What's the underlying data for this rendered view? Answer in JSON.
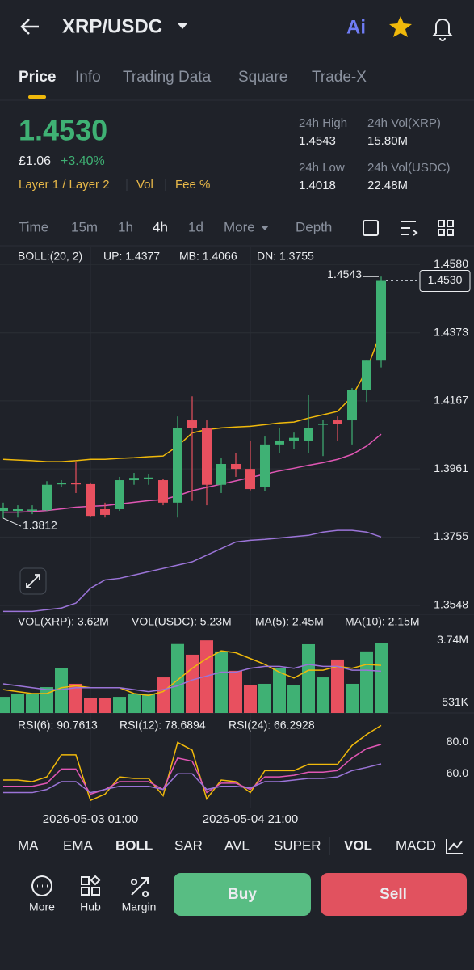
{
  "header": {
    "title": "XRP/USDC",
    "ai_label": "Ai"
  },
  "tabs": [
    "Price",
    "Info",
    "Trading Data",
    "Square",
    "Trade-X"
  ],
  "ticker": {
    "price": "1.4530",
    "fiat": "£1.06",
    "change": "+3.40%",
    "tags": [
      "Layer 1 / Layer 2",
      "Vol",
      "Fee %"
    ],
    "stats": [
      {
        "label": "24h High",
        "value": "1.4543"
      },
      {
        "label": "24h Vol(XRP)",
        "value": "15.80M"
      },
      {
        "label": "24h Low",
        "value": "1.4018"
      },
      {
        "label": "24h Vol(USDC)",
        "value": "22.48M"
      }
    ]
  },
  "intervals": [
    "Time",
    "15m",
    "1h",
    "4h",
    "1d",
    "More",
    "Depth"
  ],
  "chart_data": [
    {
      "type": "candlestick",
      "up_color": "#3fb174",
      "down_color": "#e8505f",
      "categories": [
        null,
        null,
        null,
        null,
        null,
        null,
        "2026-05-03 01:00",
        null,
        null,
        null,
        null,
        null,
        null,
        null,
        null,
        null,
        null,
        "2026-05-04 21:00",
        null,
        null,
        null,
        null,
        null,
        null,
        null,
        null,
        null
      ],
      "open": [
        1.3834,
        1.3834,
        1.3836,
        1.3836,
        1.3917,
        1.3918,
        1.3915,
        1.3839,
        1.3839,
        1.3927,
        1.3934,
        1.3927,
        1.3859,
        1.4108,
        1.4084,
        1.3913,
        1.3976,
        1.3961,
        1.3905,
        1.4035,
        1.4047,
        1.4047,
        1.4096,
        1.4108,
        1.4108,
        1.4201,
        1.4291
      ],
      "high": [
        1.3859,
        1.3851,
        1.3851,
        1.3924,
        1.3927,
        1.3983,
        1.392,
        1.3859,
        1.3937,
        1.3949,
        1.3944,
        1.3932,
        1.412,
        1.4181,
        1.4108,
        1.3993,
        1.401,
        1.4047,
        1.4059,
        1.4084,
        1.4071,
        1.4184,
        1.411,
        1.412,
        1.4206,
        1.4291,
        1.4543
      ],
      "low": [
        1.3812,
        1.3814,
        1.3824,
        1.3834,
        1.3905,
        1.3888,
        1.3815,
        1.3814,
        1.3834,
        1.3913,
        1.3913,
        1.3851,
        1.3814,
        1.3864,
        1.3851,
        1.3888,
        1.3937,
        1.3896,
        1.3895,
        1.401,
        1.4022,
        1.401,
        1.4,
        1.4047,
        1.4035,
        1.4164,
        1.4268
      ],
      "close": [
        1.3844,
        1.3839,
        1.3838,
        1.3913,
        1.3918,
        1.3917,
        1.3819,
        1.3822,
        1.3927,
        1.3934,
        1.3935,
        1.3859,
        1.4084,
        1.4084,
        1.3913,
        1.3976,
        1.3961,
        1.39,
        1.4035,
        1.4047,
        1.4055,
        1.4084,
        1.4098,
        1.4096,
        1.4201,
        1.4291,
        1.453
      ],
      "legend_title": "BOLL:(20, 2)",
      "series": [
        {
          "label": "UP: 1.4377",
          "color": "#f0b90b",
          "values": [
            1.399,
            1.3988,
            1.3986,
            1.3983,
            1.3983,
            1.3986,
            1.399,
            1.399,
            1.3993,
            1.3995,
            1.3998,
            1.4,
            1.403,
            1.407,
            1.408,
            1.4085,
            1.4088,
            1.409,
            1.4095,
            1.41,
            1.4103,
            1.4115,
            1.4125,
            1.4135,
            1.418,
            1.426,
            1.4377
          ]
        },
        {
          "label": "MB: 1.4066",
          "color": "#e056b4",
          "values": [
            1.383,
            1.383,
            1.3832,
            1.3835,
            1.384,
            1.3845,
            1.3848,
            1.385,
            1.3855,
            1.386,
            1.3865,
            1.3868,
            1.388,
            1.3895,
            1.3905,
            1.3915,
            1.3925,
            1.3935,
            1.3945,
            1.3955,
            1.3963,
            1.3972,
            1.398,
            1.399,
            1.4005,
            1.403,
            1.4066
          ]
        },
        {
          "label": "DN: 1.3755",
          "color": "#9b74d8",
          "values": [
            1.353,
            1.353,
            1.353,
            1.3535,
            1.354,
            1.3555,
            1.36,
            1.3625,
            1.363,
            1.364,
            1.365,
            1.366,
            1.367,
            1.368,
            1.37,
            1.372,
            1.374,
            1.3745,
            1.3748,
            1.3752,
            1.3756,
            1.376,
            1.377,
            1.3775,
            1.3775,
            1.377,
            1.3755
          ]
        }
      ],
      "ylim": [
        1.3521,
        1.4634
      ],
      "yticks": [
        {
          "value": 1.458,
          "label": "1.4580"
        },
        1.4373,
        1.4167,
        1.3961,
        1.3755,
        1.3548
      ],
      "grid": true,
      "annotations": {
        "high": "1.4543",
        "low": "1.3812",
        "last": "1.4530"
      }
    },
    {
      "type": "bar",
      "legend": [
        "VOL(XRP): 3.62M",
        "VOL(USDC): 5.23M"
      ],
      "values": [
        830000,
        1000000,
        1000000,
        1330000,
        2330000,
        1500000,
        750000,
        750000,
        830000,
        1000000,
        1000000,
        1830000,
        3550000,
        3000000,
        3740000,
        3170000,
        2170000,
        1420000,
        1500000,
        2330000,
        1420000,
        3540000,
        1830000,
        2750000,
        1500000,
        3170000,
        3620000
      ],
      "series": [
        {
          "label": "MA(5): 2.45M",
          "color": "#f0b90b",
          "values": [
            1200000,
            1100000,
            1000000,
            1000000,
            1300000,
            1400000,
            1300000,
            1300000,
            1300000,
            1000000,
            900000,
            1100000,
            1700000,
            2300000,
            2800000,
            3200000,
            3100000,
            2800000,
            2500000,
            2100000,
            1800000,
            2200000,
            2200000,
            2400000,
            2300000,
            2500000,
            2450000
          ]
        },
        {
          "label": "MA(10): 2.15M",
          "color": "#9b74d8",
          "values": [
            1500000,
            1400000,
            1300000,
            1200000,
            1200000,
            1300000,
            1300000,
            1300000,
            1300000,
            1200000,
            1100000,
            1200000,
            1400000,
            1700000,
            1900000,
            2100000,
            2100000,
            2300000,
            2400000,
            2400000,
            2300000,
            2500000,
            2400000,
            2400000,
            2200000,
            2200000,
            2150000
          ]
        }
      ],
      "ylim": [
        0,
        3830000
      ],
      "yticks": [
        {
          "value": 3740000,
          "label": "3.74M"
        },
        {
          "value": 531000,
          "label": "531K"
        }
      ]
    },
    {
      "type": "line",
      "series": [
        {
          "label": "RSI(6): 90.7613",
          "color": "#f0b90b",
          "values": [
            56,
            56,
            55,
            58,
            72,
            72,
            43,
            47,
            58,
            57,
            57,
            46,
            80,
            75,
            44,
            56,
            55,
            48,
            62,
            62,
            62,
            66,
            66,
            66,
            78,
            85,
            90.7613
          ]
        },
        {
          "label": "RSI(12): 78.6894",
          "color": "#e056b4",
          "values": [
            52,
            52,
            52,
            54,
            63,
            63,
            47,
            50,
            55,
            55,
            55,
            50,
            70,
            68,
            48,
            54,
            54,
            50,
            58,
            58,
            59,
            61,
            61,
            62,
            70,
            76,
            78.6894
          ]
        },
        {
          "label": "RSI(24): 66.2928",
          "color": "#9b74d8",
          "values": [
            48,
            48,
            48,
            50,
            55,
            55,
            48,
            50,
            52,
            52,
            52,
            50,
            60,
            60,
            50,
            52,
            52,
            51,
            55,
            55,
            56,
            57,
            57,
            58,
            62,
            64,
            66.2928
          ]
        }
      ],
      "ylim": [
        38,
        92
      ],
      "yticks": [
        {
          "value": 80,
          "label": "80.0"
        },
        {
          "value": 60,
          "label": "60.0"
        }
      ]
    }
  ],
  "indicators": [
    "MA",
    "EMA",
    "BOLL",
    "SAR",
    "AVL",
    "SUPER",
    "VOL",
    "MACD"
  ],
  "actions": [
    "More",
    "Hub",
    "Margin"
  ],
  "buttons": {
    "buy": "Buy",
    "sell": "Sell"
  }
}
